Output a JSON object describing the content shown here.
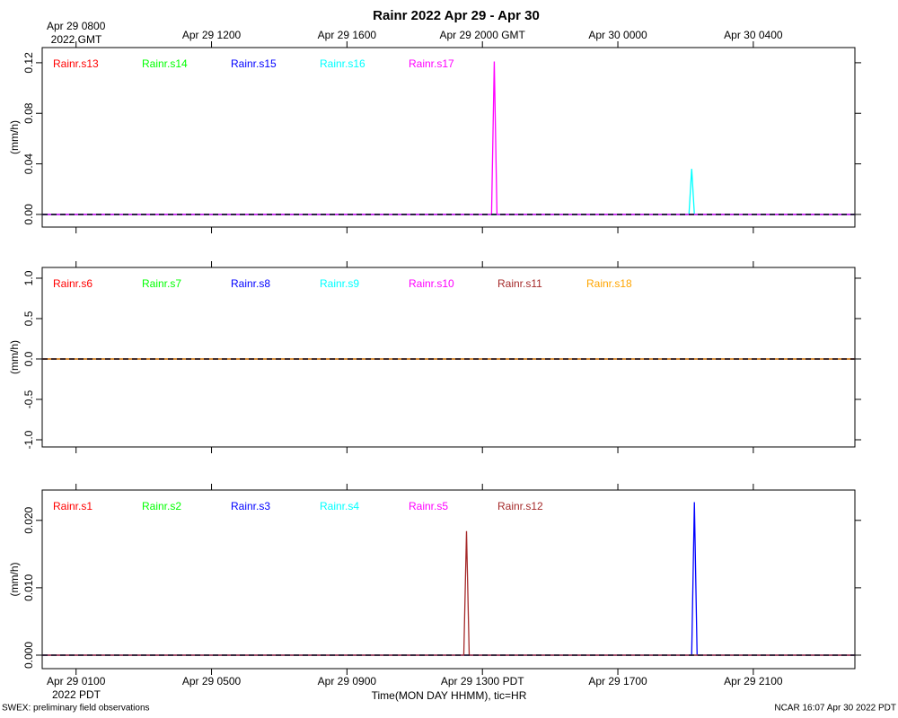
{
  "title": "Rainr 2022 Apr 29 - Apr 30",
  "x_axis": {
    "xlim": [
      0,
      24
    ],
    "top_ticks": [
      {
        "value": 1,
        "label": "Apr 29 0800"
      },
      {
        "value": 5,
        "label": "Apr 29 1200"
      },
      {
        "value": 9,
        "label": "Apr 29 1600"
      },
      {
        "value": 13,
        "label": "Apr 29 2000 GMT"
      },
      {
        "value": 17,
        "label": "Apr 30 0000"
      },
      {
        "value": 21,
        "label": "Apr 30 0400"
      }
    ],
    "top_note": "2022 GMT",
    "bottom_ticks": [
      {
        "value": 1,
        "label": "Apr 29 0100"
      },
      {
        "value": 5,
        "label": "Apr 29 0500"
      },
      {
        "value": 9,
        "label": "Apr 29 0900"
      },
      {
        "value": 13,
        "label": "Apr 29 1300 PDT"
      },
      {
        "value": 17,
        "label": "Apr 29 1700"
      },
      {
        "value": 21,
        "label": "Apr 29 2100"
      }
    ],
    "bottom_note": "2022 PDT",
    "label": "Time(MON DAY HHMM), tic=HR"
  },
  "chart_data": [
    {
      "type": "line",
      "ylabel": "(mm/h)",
      "ylim": [
        -0.01,
        0.132
      ],
      "yticks": [
        {
          "value": 0,
          "label": "0.00"
        },
        {
          "value": 0.04,
          "label": "0.04"
        },
        {
          "value": 0.08,
          "label": "0.08"
        },
        {
          "value": 0.12,
          "label": "0.12"
        }
      ],
      "reference_line": 0,
      "series": [
        {
          "name": "Rainr.s13",
          "color": "#ff0000",
          "x": [
            0,
            24
          ],
          "values": [
            0,
            0
          ]
        },
        {
          "name": "Rainr.s14",
          "color": "#00ff00",
          "x": [
            0,
            24
          ],
          "values": [
            0,
            0
          ]
        },
        {
          "name": "Rainr.s15",
          "color": "#0000ff",
          "x": [
            0,
            24
          ],
          "values": [
            0,
            0
          ]
        },
        {
          "name": "Rainr.s16",
          "color": "#00ffff",
          "x": [
            0,
            19.1,
            19.18,
            19.26,
            24
          ],
          "values": [
            0,
            0,
            0.036,
            0,
            0
          ]
        },
        {
          "name": "Rainr.s17",
          "color": "#ff00ff",
          "x": [
            0,
            13.27,
            13.35,
            13.43,
            24
          ],
          "values": [
            0,
            0,
            0.121,
            0,
            0
          ]
        }
      ]
    },
    {
      "type": "line",
      "ylabel": "(mm/h)",
      "ylim": [
        -1.089,
        1.133
      ],
      "yticks": [
        {
          "value": -1,
          "label": "-1.0"
        },
        {
          "value": -0.5,
          "label": "-0.5"
        },
        {
          "value": 0,
          "label": "0.0"
        },
        {
          "value": 0.5,
          "label": "0.5"
        },
        {
          "value": 1,
          "label": "1.0"
        }
      ],
      "reference_line": 0,
      "series": [
        {
          "name": "Rainr.s6",
          "color": "#ff0000",
          "x": [
            0,
            24
          ],
          "values": [
            0,
            0
          ]
        },
        {
          "name": "Rainr.s7",
          "color": "#00ff00",
          "x": [
            0,
            24
          ],
          "values": [
            0,
            0
          ]
        },
        {
          "name": "Rainr.s8",
          "color": "#0000ff",
          "x": [
            0,
            24
          ],
          "values": [
            0,
            0
          ]
        },
        {
          "name": "Rainr.s9",
          "color": "#00ffff",
          "x": [
            0,
            24
          ],
          "values": [
            0,
            0
          ]
        },
        {
          "name": "Rainr.s10",
          "color": "#ff00ff",
          "x": [
            0,
            24
          ],
          "values": [
            0,
            0
          ]
        },
        {
          "name": "Rainr.s11",
          "color": "#a52a2a",
          "x": [
            0,
            24
          ],
          "values": [
            0,
            0
          ]
        },
        {
          "name": "Rainr.s18",
          "color": "#ffa500",
          "x": [
            0,
            24
          ],
          "values": [
            0,
            0
          ]
        }
      ]
    },
    {
      "type": "line",
      "ylabel": "(mm/h)",
      "ylim": [
        -0.002,
        0.0245
      ],
      "yticks": [
        {
          "value": 0,
          "label": "0.000"
        },
        {
          "value": 0.01,
          "label": "0.010"
        },
        {
          "value": 0.02,
          "label": "0.020"
        }
      ],
      "reference_line": 0,
      "series": [
        {
          "name": "Rainr.s1",
          "color": "#ff0000",
          "x": [
            0,
            24
          ],
          "values": [
            0,
            0
          ]
        },
        {
          "name": "Rainr.s2",
          "color": "#00ff00",
          "x": [
            0,
            24
          ],
          "values": [
            0,
            0
          ]
        },
        {
          "name": "Rainr.s3",
          "color": "#0000ff",
          "x": [
            0,
            19.18,
            19.26,
            19.34,
            24
          ],
          "values": [
            0,
            0,
            0.0227,
            0,
            0
          ]
        },
        {
          "name": "Rainr.s4",
          "color": "#00ffff",
          "x": [
            0,
            24
          ],
          "values": [
            0,
            0
          ]
        },
        {
          "name": "Rainr.s5",
          "color": "#ff00ff",
          "x": [
            0,
            24
          ],
          "values": [
            0,
            0
          ]
        },
        {
          "name": "Rainr.s12",
          "color": "#a52a2a",
          "x": [
            0,
            12.45,
            12.53,
            12.61,
            24
          ],
          "values": [
            0,
            0,
            0.0184,
            0,
            0
          ]
        }
      ]
    }
  ],
  "footer": {
    "left": "SWEX: preliminary field observations",
    "right": "NCAR 16:07 Apr 30 2022 PDT"
  }
}
